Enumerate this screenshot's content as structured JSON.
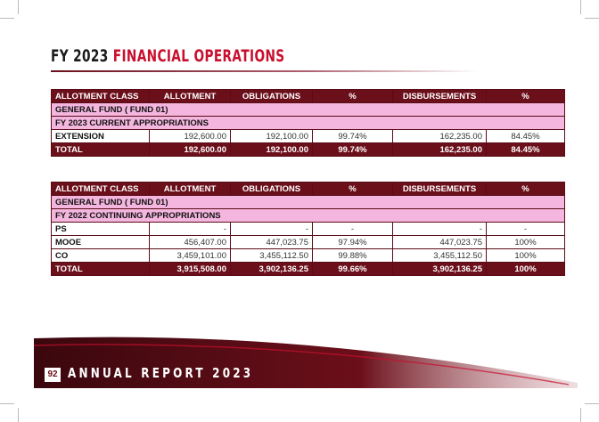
{
  "title": {
    "prefix": "FY 2023",
    "highlight": "FINANCIAL OPERATIONS"
  },
  "tables": [
    {
      "columns": [
        "ALLOTMENT CLASS",
        "ALLOTMENT",
        "OBLIGATIONS",
        "%",
        "DISBURSEMENTS",
        "%"
      ],
      "sections": [
        "GENERAL FUND ( FUND 01)",
        "FY 2023 CURRENT APPROPRIATIONS"
      ],
      "rows": [
        [
          "EXTENSION",
          "192,600.00",
          "192,100.00",
          "99.74%",
          "162,235.00",
          "84.45%"
        ]
      ],
      "total": [
        "TOTAL",
        "192,600.00",
        "192,100.00",
        "99.74%",
        "162,235.00",
        "84.45%"
      ]
    },
    {
      "columns": [
        "ALLOTMENT CLASS",
        "ALLOTMENT",
        "OBLIGATIONS",
        "%",
        "DISBURSEMENTS",
        "%"
      ],
      "sections": [
        "GENERAL FUND ( FUND 01)",
        "FY 2022 CONTINUING APPROPRIATIONS"
      ],
      "rows": [
        [
          "PS",
          "-",
          "-",
          "-",
          "-",
          "-"
        ],
        [
          "MOOE",
          "456,407.00",
          "447,023.75",
          "97.94%",
          "447,023.75",
          "100%"
        ],
        [
          "CO",
          "3,459,101.00",
          "3,455,112.50",
          "99.88%",
          "3,455,112.50",
          "100%"
        ]
      ],
      "total": [
        "TOTAL",
        "3,915,508.00",
        "3,902,136.25",
        "99.66%",
        "3,902,136.25",
        "100%"
      ]
    }
  ],
  "footer": {
    "page": "92",
    "text": "ANNUAL REPORT 2023"
  }
}
